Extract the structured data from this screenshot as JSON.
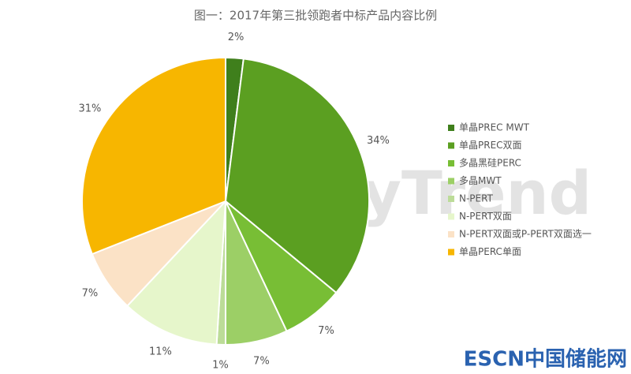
{
  "chart_data": {
    "type": "pie",
    "title": "图一：2017年第三批领跑者中标产品内容比例",
    "watermark": "EnergyTrend",
    "footer_logo": "ESCN中国储能网",
    "categories": [
      "单晶PREC MWT",
      "单晶PREC双面",
      "多晶黑硅PERC",
      "多晶MWT",
      "N-PERT",
      "N-PERT双面",
      "N-PERT双面或P-PERT双面选一",
      "单晶PERC单面"
    ],
    "values": [
      2,
      34,
      7,
      7,
      1,
      11,
      7,
      31
    ],
    "value_labels": [
      "2%",
      "34%",
      "7%",
      "7%",
      "1%",
      "11%",
      "7%",
      "31%"
    ],
    "colors": [
      "#3f7f1c",
      "#5b9f21",
      "#78be35",
      "#9ccf66",
      "#bcdc98",
      "#e6f6cb",
      "#fbe2c6",
      "#f7b600"
    ],
    "legend": "right"
  }
}
